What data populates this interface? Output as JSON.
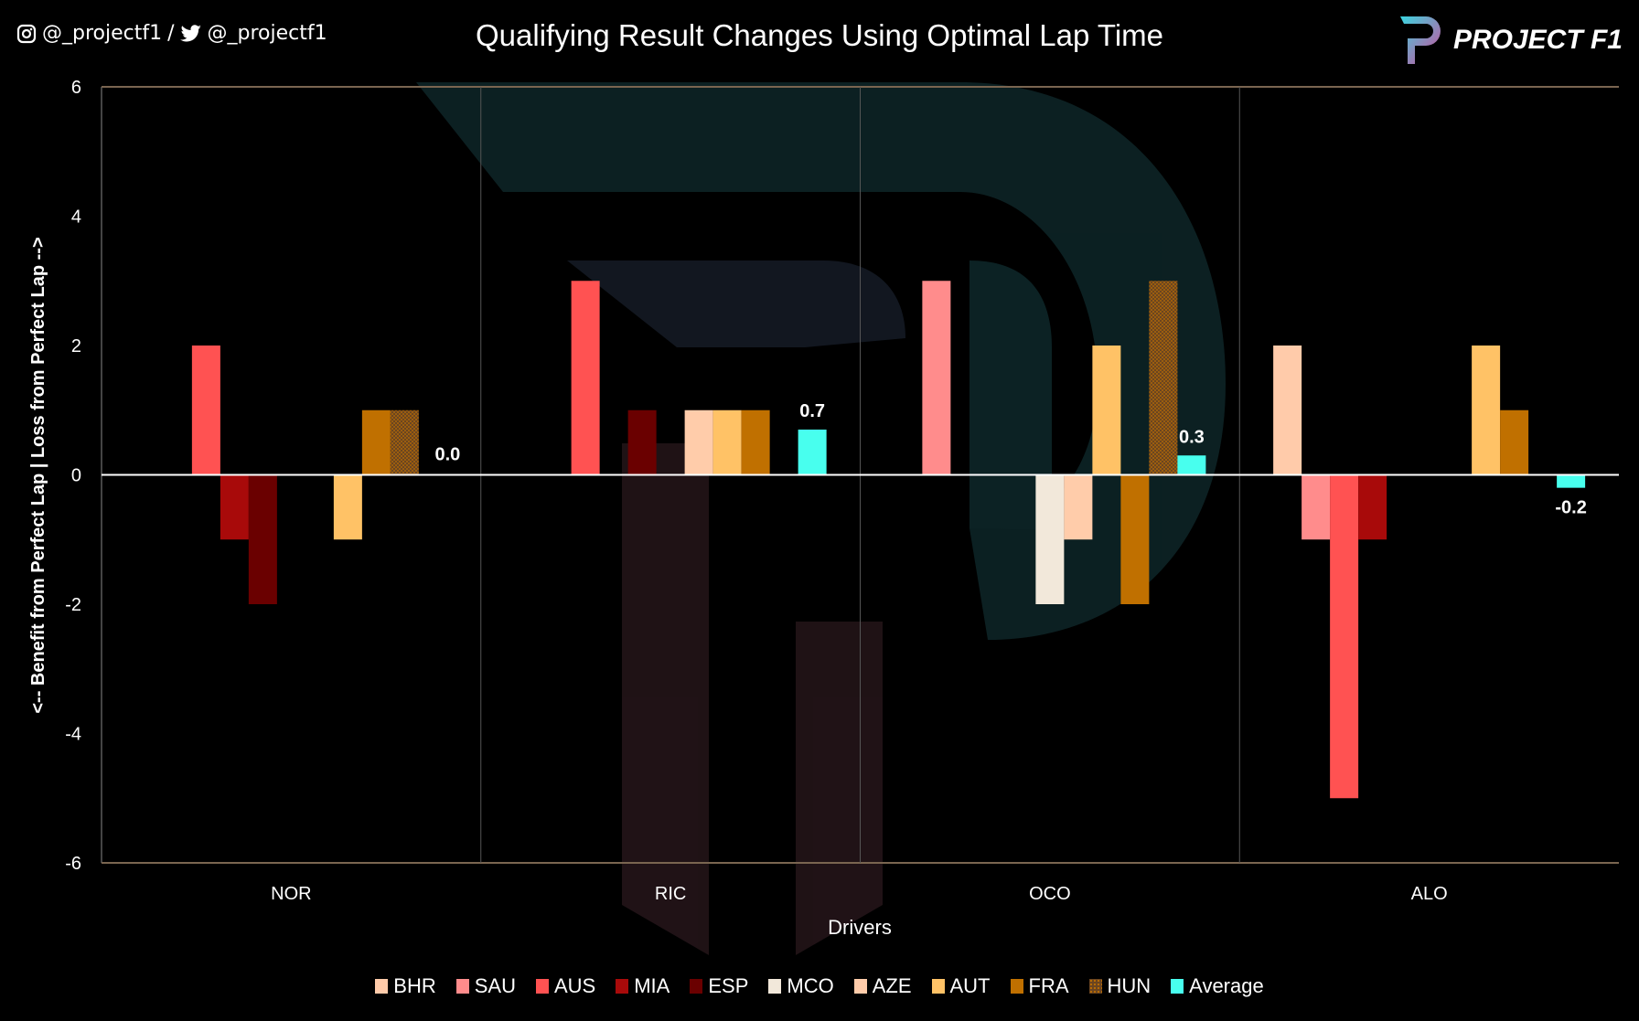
{
  "header": {
    "social_instagram": "@_projectf1",
    "separator": "/",
    "social_twitter": "@_projectf1",
    "brand": "PROJECT F1"
  },
  "chart_data": {
    "type": "bar",
    "title": "Qualifying Result Changes Using Optimal Lap Time",
    "xlabel": "Drivers",
    "ylabel": "<-- Benefit from Perfect Lap | Loss from Perfect Lap -->",
    "ylim": [
      -6,
      6
    ],
    "yticks": [
      6,
      4,
      2,
      0,
      -2,
      -4,
      -6
    ],
    "grid": false,
    "legend": "bottom",
    "categories": [
      "NOR",
      "RIC",
      "OCO",
      "ALO"
    ],
    "series": [
      {
        "name": "BHR",
        "color": "#FFCBAA",
        "values": [
          0,
          0,
          0,
          2
        ]
      },
      {
        "name": "SAU",
        "color": "#FF8C8C",
        "values": [
          0,
          0,
          3,
          -1
        ]
      },
      {
        "name": "AUS",
        "color": "#FF5252",
        "values": [
          2,
          3,
          0,
          -5
        ]
      },
      {
        "name": "MIA",
        "color": "#A80A0A",
        "values": [
          -1,
          0,
          0,
          -1
        ]
      },
      {
        "name": "ESP",
        "color": "#6A0000",
        "values": [
          -2,
          1,
          0,
          0
        ]
      },
      {
        "name": "MCO",
        "color": "#F2E8DA",
        "values": [
          0,
          0,
          -2,
          0
        ]
      },
      {
        "name": "AZE",
        "color": "#FFCCAA",
        "values": [
          0,
          1,
          -1,
          0
        ]
      },
      {
        "name": "AUT",
        "color": "#FFC266",
        "values": [
          -1,
          1,
          2,
          2
        ]
      },
      {
        "name": "FRA",
        "color": "#C07000",
        "values": [
          1,
          1,
          -2,
          1
        ]
      },
      {
        "name": "HUN",
        "color": "#7A4E22",
        "values": [
          1,
          0,
          3,
          0
        ]
      },
      {
        "name": "Average",
        "color": "#48FFEE",
        "values": [
          0.0,
          0.7,
          0.3,
          -0.2
        ],
        "labels": [
          "0.0",
          "0.7",
          "0.3",
          "-0.2"
        ]
      }
    ]
  }
}
